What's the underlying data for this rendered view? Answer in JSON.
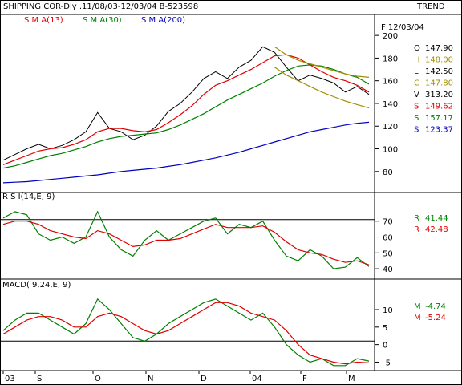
{
  "header": {
    "title": "SHIPPING COR-Dly .11/08/03-12/03/04  B-523598",
    "panel_label": "TREND",
    "date_label": "F 12/03/04",
    "sma13_label": "S M A(13)",
    "sma30_label": "S M A(30)",
    "sma200_label": "S M A(200)"
  },
  "price_readout": [
    {
      "key": "O",
      "value": "147.90",
      "color": "#000000"
    },
    {
      "key": "H",
      "value": "148.00",
      "color": "#a09000"
    },
    {
      "key": "L",
      "value": "142.50",
      "color": "#000000"
    },
    {
      "key": "C",
      "value": "147.80",
      "color": "#a09000"
    },
    {
      "key": "V",
      "value": "313.20",
      "color": "#000000"
    },
    {
      "key": "S",
      "value": "149.62",
      "color": "#e00000"
    },
    {
      "key": "S",
      "value": "157.17",
      "color": "#008000"
    },
    {
      "key": "S",
      "value": "123.37",
      "color": "#0000c0"
    }
  ],
  "rsi_title": "R S I(14,E, 9)",
  "rsi_readout": [
    {
      "key": "R",
      "value": "41.44",
      "color": "#008000"
    },
    {
      "key": "R",
      "value": "42.48",
      "color": "#e00000"
    }
  ],
  "macd_title": "MACD( 9,24,E, 9)",
  "macd_readout": [
    {
      "key": "M",
      "value": "-4.74",
      "color": "#008000"
    },
    {
      "key": "M",
      "value": "-5.24",
      "color": "#e00000"
    }
  ],
  "x_axis_labels": [
    "03",
    "S",
    "O",
    "N",
    "D",
    "04",
    "F",
    "M"
  ],
  "colors": {
    "sma13": "#e00000",
    "sma30": "#008000",
    "sma200": "#0000c0",
    "trendline": "#a09000",
    "price": "#000000",
    "grid": "#000000"
  },
  "chart_data": [
    {
      "type": "line",
      "title": "SHIPPING COR-Dly .11/08/03-12/03/04  B-523598",
      "ylim": [
        65,
        210
      ],
      "yticks": [
        80,
        100,
        120,
        140,
        160,
        180,
        200
      ],
      "x": [
        "11/08/03",
        "18/08/03",
        "25/08/03",
        "01/09/03",
        "08/09/03",
        "15/09/03",
        "22/09/03",
        "29/09/03",
        "06/10/03",
        "13/10/03",
        "20/10/03",
        "27/10/03",
        "03/11/03",
        "10/11/03",
        "17/11/03",
        "24/11/03",
        "01/12/03",
        "08/12/03",
        "15/12/03",
        "22/12/03",
        "29/12/03",
        "05/01/04",
        "12/01/04",
        "19/01/04",
        "26/01/04",
        "02/02/04",
        "09/02/04",
        "16/02/04",
        "23/02/04",
        "01/03/04",
        "08/03/04",
        "12/03/04"
      ],
      "series": [
        {
          "name": "Close",
          "values": [
            90,
            95,
            100,
            104,
            100,
            103,
            108,
            115,
            132,
            118,
            115,
            108,
            112,
            120,
            133,
            140,
            150,
            162,
            168,
            162,
            172,
            178,
            190,
            185,
            172,
            160,
            165,
            162,
            158,
            150,
            155,
            148
          ]
        },
        {
          "name": "S M A(13)",
          "values": [
            86,
            90,
            94,
            98,
            100,
            101,
            104,
            108,
            115,
            118,
            118,
            116,
            115,
            117,
            123,
            130,
            138,
            148,
            156,
            160,
            165,
            170,
            176,
            182,
            183,
            180,
            174,
            168,
            163,
            160,
            156,
            150
          ]
        },
        {
          "name": "S M A(30)",
          "values": [
            83,
            85,
            88,
            91,
            94,
            96,
            99,
            102,
            106,
            109,
            111,
            112,
            113,
            114,
            117,
            121,
            126,
            131,
            137,
            143,
            148,
            153,
            158,
            164,
            169,
            173,
            174,
            173,
            170,
            166,
            163,
            157
          ]
        },
        {
          "name": "S M A(200)",
          "values": [
            70,
            70.5,
            71,
            72,
            73,
            74,
            75,
            76,
            77,
            78.5,
            80,
            81,
            82,
            83,
            84.5,
            86,
            88,
            90,
            92,
            94.5,
            97,
            100,
            103,
            106,
            109,
            112,
            115,
            117,
            119,
            121,
            122.5,
            123.4
          ]
        },
        {
          "name": "Upper trendline",
          "values": [
            null,
            null,
            null,
            null,
            null,
            null,
            null,
            null,
            null,
            null,
            null,
            null,
            null,
            null,
            null,
            null,
            null,
            null,
            null,
            null,
            null,
            null,
            null,
            190,
            183,
            178,
            175,
            172,
            169,
            166,
            164,
            163
          ]
        },
        {
          "name": "Lower trendline",
          "values": [
            null,
            null,
            null,
            null,
            null,
            null,
            null,
            null,
            null,
            null,
            null,
            null,
            null,
            null,
            null,
            null,
            null,
            null,
            null,
            null,
            null,
            null,
            null,
            172,
            165,
            160,
            155,
            150,
            146,
            142,
            139,
            136
          ]
        }
      ]
    },
    {
      "type": "line",
      "title": "R S I(14,E, 9)",
      "ylim": [
        35,
        82
      ],
      "yticks": [
        40,
        50,
        60,
        70
      ],
      "reference": 71,
      "x": [
        "11/08/03",
        "18/08/03",
        "25/08/03",
        "01/09/03",
        "08/09/03",
        "15/09/03",
        "22/09/03",
        "29/09/03",
        "06/10/03",
        "13/10/03",
        "20/10/03",
        "27/10/03",
        "03/11/03",
        "10/11/03",
        "17/11/03",
        "24/11/03",
        "01/12/03",
        "08/12/03",
        "15/12/03",
        "22/12/03",
        "29/12/03",
        "05/01/04",
        "12/01/04",
        "19/01/04",
        "26/01/04",
        "02/02/04",
        "09/02/04",
        "16/02/04",
        "23/02/04",
        "01/03/04",
        "08/03/04",
        "12/03/04"
      ],
      "series": [
        {
          "name": "RSI",
          "values": [
            72,
            76,
            74,
            62,
            58,
            60,
            56,
            60,
            76,
            60,
            52,
            48,
            58,
            64,
            58,
            62,
            66,
            70,
            72,
            62,
            68,
            66,
            70,
            58,
            48,
            45,
            52,
            48,
            40,
            41,
            47,
            41.4
          ]
        },
        {
          "name": "Signal",
          "values": [
            68,
            70,
            70,
            68,
            64,
            62,
            60,
            59,
            64,
            62,
            58,
            54,
            55,
            58,
            58,
            59,
            62,
            65,
            68,
            66,
            66,
            66,
            67,
            63,
            57,
            52,
            50,
            49,
            46,
            44,
            45,
            42.5
          ]
        }
      ]
    },
    {
      "type": "line",
      "title": "MACD( 9,24,E, 9)",
      "ylim": [
        -6.5,
        15.5
      ],
      "yticks": [
        -5,
        0,
        5,
        10
      ],
      "reference": 1,
      "x": [
        "11/08/03",
        "18/08/03",
        "25/08/03",
        "01/09/03",
        "08/09/03",
        "15/09/03",
        "22/09/03",
        "29/09/03",
        "06/10/03",
        "13/10/03",
        "20/10/03",
        "27/10/03",
        "03/11/03",
        "10/11/03",
        "17/11/03",
        "24/11/03",
        "01/12/03",
        "08/12/03",
        "15/12/03",
        "22/12/03",
        "29/12/03",
        "05/01/04",
        "12/01/04",
        "19/01/04",
        "26/01/04",
        "02/02/04",
        "09/02/04",
        "16/02/04",
        "23/02/04",
        "01/03/04",
        "08/03/04",
        "12/03/04"
      ],
      "series": [
        {
          "name": "MACD",
          "values": [
            4,
            7,
            9,
            9,
            7,
            5,
            3,
            6,
            13,
            10,
            6,
            2,
            1,
            3,
            6,
            8,
            10,
            12,
            13,
            11,
            9,
            7,
            9,
            5,
            0,
            -3,
            -5,
            -4,
            -6,
            -6,
            -4,
            -4.7
          ]
        },
        {
          "name": "Signal",
          "values": [
            3,
            5,
            7,
            8,
            8,
            7,
            5,
            5,
            8,
            9,
            8,
            6,
            4,
            3,
            4,
            6,
            8,
            10,
            12,
            12,
            11,
            9,
            8,
            7,
            4,
            0,
            -3,
            -4,
            -5,
            -5.5,
            -5,
            -5.2
          ]
        }
      ]
    }
  ]
}
